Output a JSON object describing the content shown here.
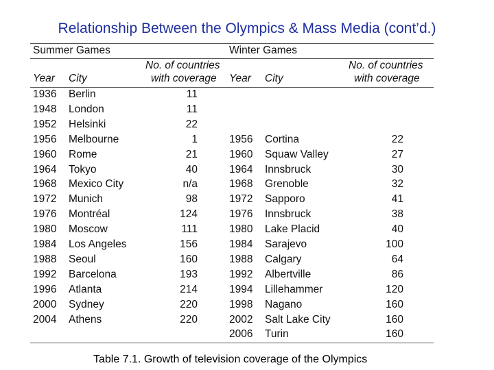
{
  "title": "Relationship Between the Olympics & Mass Media (cont’d.)",
  "table": {
    "group_summer": "Summer Games",
    "group_winter": "Winter Games",
    "col_year": "Year",
    "col_city": "City",
    "col_countries_l1": "No. of countries",
    "col_countries_l2": "with coverage",
    "col_countries_l1_winter": "No.  of countries",
    "summer": [
      {
        "year": "1936",
        "city": "Berlin",
        "countries": "11"
      },
      {
        "year": "1948",
        "city": "London",
        "countries": "11"
      },
      {
        "year": "1952",
        "city": "Helsinki",
        "countries": "22"
      },
      {
        "year": "1956",
        "city": "Melbourne",
        "countries": "1"
      },
      {
        "year": "1960",
        "city": "Rome",
        "countries": "21"
      },
      {
        "year": "1964",
        "city": "Tokyo",
        "countries": "40"
      },
      {
        "year": "1968",
        "city": "Mexico City",
        "countries": "n/a"
      },
      {
        "year": "1972",
        "city": "Munich",
        "countries": "98"
      },
      {
        "year": "1976",
        "city": "Montréal",
        "countries": "124"
      },
      {
        "year": "1980",
        "city": "Moscow",
        "countries": "111"
      },
      {
        "year": "1984",
        "city": "Los Angeles",
        "countries": "156"
      },
      {
        "year": "1988",
        "city": "Seoul",
        "countries": "160"
      },
      {
        "year": "1992",
        "city": "Barcelona",
        "countries": "193"
      },
      {
        "year": "1996",
        "city": "Atlanta",
        "countries": "214"
      },
      {
        "year": "2000",
        "city": "Sydney",
        "countries": "220"
      },
      {
        "year": "2004",
        "city": "Athens",
        "countries": "220"
      }
    ],
    "winter": [
      {
        "year": "1956",
        "city": "Cortina",
        "countries": "22"
      },
      {
        "year": "1960",
        "city": "Squaw Valley",
        "countries": "27"
      },
      {
        "year": "1964",
        "city": "Innsbruck",
        "countries": "30"
      },
      {
        "year": "1968",
        "city": "Grenoble",
        "countries": "32"
      },
      {
        "year": "1972",
        "city": "Sapporo",
        "countries": "41"
      },
      {
        "year": "1976",
        "city": "Innsbruck",
        "countries": "38"
      },
      {
        "year": "1980",
        "city": "Lake Placid",
        "countries": "40"
      },
      {
        "year": "1984",
        "city": "Sarajevo",
        "countries": "100"
      },
      {
        "year": "1988",
        "city": "Calgary",
        "countries": "64"
      },
      {
        "year": "1992",
        "city": "Albertville",
        "countries": "86"
      },
      {
        "year": "1994",
        "city": "Lillehammer",
        "countries": "120"
      },
      {
        "year": "1998",
        "city": "Nagano",
        "countries": "160"
      },
      {
        "year": "2002",
        "city": "Salt Lake City",
        "countries": "160"
      },
      {
        "year": "2006",
        "city": "Turin",
        "countries": "160"
      }
    ]
  },
  "caption": "Table 7.1. Growth of television coverage of the Olympics"
}
